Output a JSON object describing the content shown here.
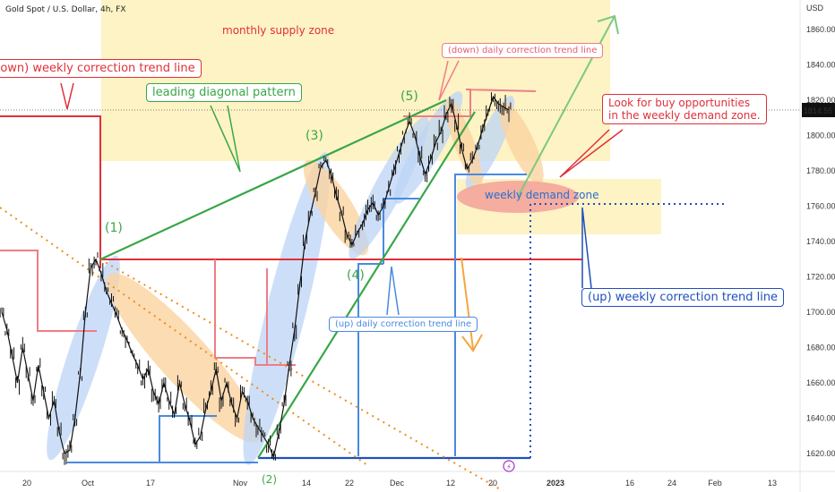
{
  "header": {
    "symbol_title": "Gold Spot / U.S. Dollar, 4h, FX",
    "currency": "USD",
    "last_price": "1814.55"
  },
  "annotations": {
    "supply_zone": "monthly supply zone",
    "demand_zone": "weekly demand zone",
    "leading_diagonal": "leading diagonal pattern",
    "down_weekly_trend": "(down) weekly correction trend line",
    "down_daily_trend": "(down) daily correction trend line",
    "up_daily_trend": "(up) daily correction trend line",
    "up_weekly_trend": "(up) weekly correction trend line",
    "buy_note_line1": "Look for buy opportunities",
    "buy_note_line2": "in the weekly demand zone.",
    "wave_1": "(1)",
    "wave_3": "(3)",
    "wave_4": "(4)",
    "wave_5": "(5)",
    "wave_2": "(2)"
  },
  "colors": {
    "supply_zone": "#fdf3c4",
    "demand_zone": "#fdf3c4",
    "demand_ellipse": "#f3a59a",
    "green": "#3aa648",
    "red": "#e0303a",
    "blue": "#2a6dd2",
    "orange": "#f4a640",
    "impulse_fill": "#bcd4f6",
    "correction_fill": "#fbd3a0",
    "candle": "#111111"
  },
  "chart_data": {
    "type": "line",
    "title": "Gold Spot / U.S. Dollar, 4h, FX",
    "ylabel": "USD",
    "ylim": [
      1610,
      1870
    ],
    "y_ticks": [
      1620,
      1640,
      1660,
      1680,
      1700,
      1720,
      1740,
      1760,
      1780,
      1800,
      1820,
      1840,
      1860
    ],
    "x_tick_labels": [
      "20",
      "Oct",
      "17",
      "Nov",
      "14",
      "22",
      "Dec",
      "12",
      "20",
      "2023",
      "16",
      "24",
      "Feb",
      "13"
    ],
    "series": [
      {
        "values": [
          1700,
          1690,
          1675,
          1660,
          1680,
          1665,
          1650,
          1670,
          1655,
          1640,
          1650,
          1632,
          1620,
          1622,
          1640,
          1665,
          1700,
          1725,
          1730,
          1722,
          1712,
          1705,
          1698,
          1690,
          1684,
          1676,
          1670,
          1662,
          1668,
          1655,
          1648,
          1660,
          1650,
          1642,
          1660,
          1648,
          1638,
          1625,
          1630,
          1645,
          1655,
          1668,
          1650,
          1660,
          1648,
          1640,
          1655,
          1650,
          1640,
          1635,
          1630,
          1625,
          1618,
          1632,
          1648,
          1670,
          1690,
          1715,
          1740,
          1755,
          1768,
          1782,
          1786,
          1778,
          1766,
          1756,
          1744,
          1738,
          1745,
          1750,
          1758,
          1762,
          1755,
          1760,
          1770,
          1780,
          1790,
          1800,
          1808,
          1800,
          1788,
          1778,
          1786,
          1796,
          1802,
          1812,
          1818,
          1806,
          1792,
          1781,
          1786,
          1794,
          1804,
          1813,
          1822,
          1818,
          1816,
          1814.55
        ]
      }
    ],
    "price_label": 1814.55,
    "zones": {
      "monthly_supply": [
        1785,
        1870
      ],
      "weekly_demand": [
        1745,
        1773
      ]
    },
    "horizontal_levels": {
      "red_weekly": 1729,
      "blue_weekly": 1618,
      "blue_dotted": 1762
    }
  }
}
